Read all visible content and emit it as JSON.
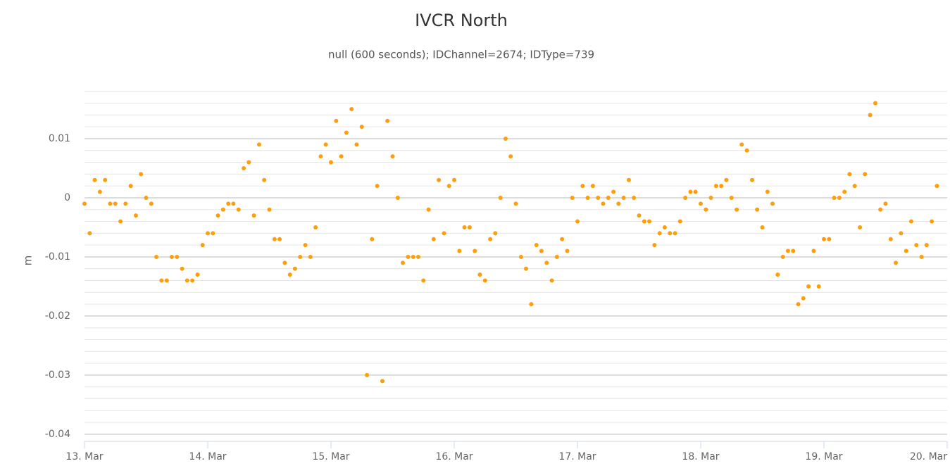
{
  "chart_data": {
    "type": "scatter",
    "title": "IVCR North",
    "subtitle": "null (600 seconds); IDChannel=2674; IDType=739",
    "y_label": "m",
    "color": "#ff9e0d",
    "grid": true,
    "minor_grid": true,
    "xlim": [
      13,
      20
    ],
    "xticks": [
      {
        "value": 13,
        "label": "13. Mar"
      },
      {
        "value": 14,
        "label": "14. Mar"
      },
      {
        "value": 15,
        "label": "15. Mar"
      },
      {
        "value": 16,
        "label": "16. Mar"
      },
      {
        "value": 17,
        "label": "17. Mar"
      },
      {
        "value": 18,
        "label": "18. Mar"
      },
      {
        "value": 19,
        "label": "19. Mar"
      },
      {
        "value": 20,
        "label": "20. Mar"
      }
    ],
    "ylim": [
      -0.0412,
      0.0194
    ],
    "yticks": [
      0.01,
      0,
      -0.01,
      -0.02,
      -0.03,
      -0.04
    ],
    "x": [
      13,
      13.042,
      13.083,
      13.125,
      13.167,
      13.208,
      13.25,
      13.292,
      13.333,
      13.375,
      13.417,
      13.458,
      13.5,
      13.542,
      13.583,
      13.625,
      13.667,
      13.708,
      13.75,
      13.792,
      13.833,
      13.875,
      13.917,
      13.958,
      14,
      14.042,
      14.083,
      14.125,
      14.167,
      14.208,
      14.25,
      14.292,
      14.333,
      14.375,
      14.417,
      14.458,
      14.5,
      14.542,
      14.583,
      14.625,
      14.667,
      14.708,
      14.75,
      14.792,
      14.833,
      14.875,
      14.917,
      14.958,
      15,
      15.042,
      15.083,
      15.125,
      15.167,
      15.208,
      15.25,
      15.292,
      15.333,
      15.375,
      15.417,
      15.458,
      15.5,
      15.542,
      15.583,
      15.625,
      15.667,
      15.708,
      15.75,
      15.792,
      15.833,
      15.875,
      15.917,
      15.958,
      16,
      16.042,
      16.083,
      16.125,
      16.167,
      16.208,
      16.25,
      16.292,
      16.333,
      16.375,
      16.417,
      16.458,
      16.5,
      16.542,
      16.583,
      16.625,
      16.667,
      16.708,
      16.75,
      16.792,
      16.833,
      16.875,
      16.917,
      16.958,
      17,
      17.042,
      17.083,
      17.125,
      17.167,
      17.208,
      17.25,
      17.292,
      17.333,
      17.375,
      17.417,
      17.458,
      17.5,
      17.542,
      17.583,
      17.625,
      17.667,
      17.708,
      17.75,
      17.792,
      17.833,
      17.875,
      17.917,
      17.958,
      18,
      18.042,
      18.083,
      18.125,
      18.167,
      18.208,
      18.25,
      18.292,
      18.333,
      18.375,
      18.417,
      18.458,
      18.5,
      18.542,
      18.583,
      18.625,
      18.667,
      18.708,
      18.75,
      18.792,
      18.833,
      18.875,
      18.917,
      18.958,
      19,
      19.042,
      19.083,
      19.125,
      19.167,
      19.208,
      19.25,
      19.292,
      19.333,
      19.375,
      19.417,
      19.458,
      19.5,
      19.542,
      19.583,
      19.625,
      19.667,
      19.708,
      19.75,
      19.792,
      19.833,
      19.875,
      19.917
    ],
    "values": [
      -0.001,
      -0.006,
      0.003,
      0.001,
      0.003,
      -0.001,
      -0.001,
      -0.004,
      -0.001,
      0.002,
      -0.003,
      0.004,
      0,
      -0.001,
      -0.01,
      -0.014,
      -0.014,
      -0.01,
      -0.01,
      -0.012,
      -0.014,
      -0.014,
      -0.013,
      -0.008,
      -0.006,
      -0.006,
      -0.003,
      -0.002,
      -0.001,
      -0.001,
      -0.002,
      0.005,
      0.006,
      -0.003,
      0.009,
      0.003,
      -0.002,
      -0.007,
      -0.007,
      -0.011,
      -0.013,
      -0.012,
      -0.01,
      -0.008,
      -0.01,
      -0.005,
      0.007,
      0.009,
      0.006,
      0.013,
      0.007,
      0.011,
      0.015,
      0.009,
      0.012,
      -0.03,
      -0.007,
      0.002,
      -0.031,
      0.013,
      0.007,
      0,
      -0.011,
      -0.01,
      -0.01,
      -0.01,
      -0.014,
      -0.002,
      -0.007,
      0.003,
      -0.006,
      0.002,
      0.003,
      -0.009,
      -0.005,
      -0.005,
      -0.009,
      -0.013,
      -0.014,
      -0.007,
      -0.006,
      0,
      0.01,
      0.007,
      -0.001,
      -0.01,
      -0.012,
      -0.018,
      -0.008,
      -0.009,
      -0.011,
      -0.014,
      -0.01,
      -0.007,
      -0.009,
      0,
      -0.004,
      0.002,
      0,
      0.002,
      0,
      -0.001,
      0,
      0.001,
      -0.001,
      0,
      0.003,
      0,
      -0.003,
      -0.004,
      -0.004,
      -0.008,
      -0.006,
      -0.005,
      -0.006,
      -0.006,
      -0.004,
      0,
      0.001,
      0.001,
      -0.001,
      -0.002,
      0,
      0.002,
      0.002,
      0.003,
      0,
      -0.002,
      0.009,
      0.008,
      0.003,
      -0.002,
      -0.005,
      0.001,
      -0.001,
      -0.013,
      -0.01,
      -0.009,
      -0.009,
      -0.018,
      -0.017,
      -0.015,
      -0.009,
      -0.015,
      -0.007,
      -0.007,
      0,
      0,
      0.001,
      0.004,
      0.002,
      -0.005,
      0.004,
      0.014,
      0.016,
      -0.002,
      -0.001,
      -0.007,
      -0.011,
      -0.006,
      -0.009,
      -0.004,
      -0.008,
      -0.01,
      -0.008,
      -0.004,
      0.002
    ]
  }
}
